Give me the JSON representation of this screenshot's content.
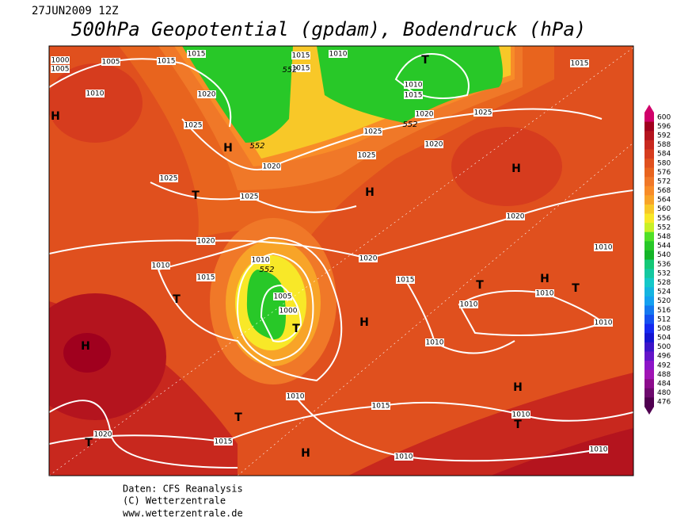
{
  "header": {
    "date": "27JUN2009 12Z",
    "title": "500hPa Geopotential (gpdam), Bodendruck (hPa)"
  },
  "map": {
    "pressure_labels": [
      1000,
      1005,
      1005,
      1015,
      1015,
      1015,
      1010,
      1015,
      1010,
      1015,
      1020,
      1025,
      1015,
      1010,
      1020,
      1025,
      1025,
      1020,
      1025,
      1020,
      1025,
      1025,
      1020,
      1020,
      1020,
      1010,
      1010,
      1015,
      1010,
      1005,
      1000,
      1015,
      1010,
      1010,
      1010,
      1010,
      1010,
      1015,
      1010,
      1020,
      1015,
      1010,
      1010
    ],
    "height_labels": [
      552,
      552,
      552,
      552
    ],
    "highs": [
      "H",
      "H",
      "H",
      "H",
      "H",
      "H",
      "H",
      "H",
      "H"
    ],
    "lows": [
      "T",
      "T",
      "T",
      "T",
      "T",
      "T",
      "T",
      "T",
      "T"
    ]
  },
  "colorbar": {
    "labels": [
      600,
      596,
      592,
      588,
      584,
      580,
      576,
      572,
      568,
      564,
      560,
      556,
      552,
      548,
      544,
      540,
      536,
      532,
      528,
      524,
      520,
      516,
      512,
      508,
      504,
      500,
      496,
      492,
      488,
      484,
      480,
      476
    ],
    "colors": [
      "#d0006a",
      "#a0001e",
      "#b4141e",
      "#c8281e",
      "#d63c1e",
      "#e0501e",
      "#e8641e",
      "#f07828",
      "#f88c28",
      "#f8a428",
      "#f8c828",
      "#f8e828",
      "#c8f028",
      "#50e028",
      "#28c828",
      "#14b428",
      "#14c878",
      "#14c8a0",
      "#14c8c8",
      "#14b4e0",
      "#14a0f0",
      "#1478f0",
      "#1450f0",
      "#1428f0",
      "#1414d0",
      "#3c14c8",
      "#6414c8",
      "#8c14c8",
      "#a014b4",
      "#8c0c8c",
      "#6e0a6e",
      "#500050"
    ]
  },
  "footer": {
    "line1": "Daten: CFS Reanalysis",
    "line2": "(C) Wetterzentrale",
    "line3": "www.wetterzentrale.de"
  }
}
